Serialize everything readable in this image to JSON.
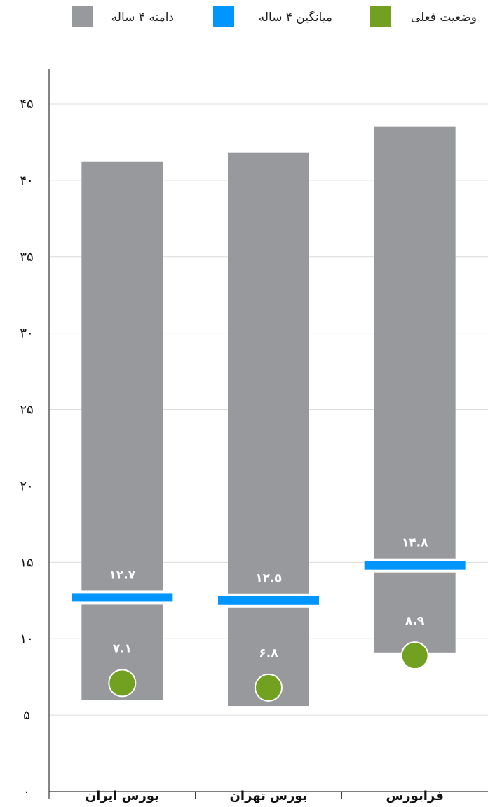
{
  "chart_data": {
    "type": "bar",
    "categories": [
      "فرابورس",
      "بورس تهران",
      "بورس ایران"
    ],
    "series": [
      {
        "name": "دامنه ۴ ساله",
        "kind": "range",
        "low": [
          9.1,
          5.6,
          6.0
        ],
        "high": [
          43.5,
          41.8,
          41.2
        ]
      },
      {
        "name": "میانگین ۴ ساله",
        "kind": "marker-line",
        "values": [
          14.8,
          12.5,
          12.7
        ],
        "labels": [
          "۱۴.۸",
          "۱۲.۵",
          "۱۲.۷"
        ]
      },
      {
        "name": "وضعیت فعلی",
        "kind": "marker-dot",
        "values": [
          8.9,
          6.8,
          7.1
        ],
        "labels": [
          "۸.۹",
          "۶.۸",
          "۷.۱"
        ]
      }
    ],
    "ylim": [
      0,
      45
    ],
    "yticks": [
      0,
      5,
      10,
      15,
      20,
      25,
      30,
      35,
      40,
      45
    ],
    "ytick_labels": [
      "۰",
      "۵",
      "۱۰",
      "۱۵",
      "۲۰",
      "۲۵",
      "۳۰",
      "۳۵",
      "۴۰",
      "۴۵"
    ],
    "grid": true,
    "legend_position": "top",
    "colors": {
      "range": "#97999c",
      "average": "#0095ff",
      "current": "#72a122",
      "grid": "#dcdcdc",
      "axis": "#333333"
    }
  }
}
